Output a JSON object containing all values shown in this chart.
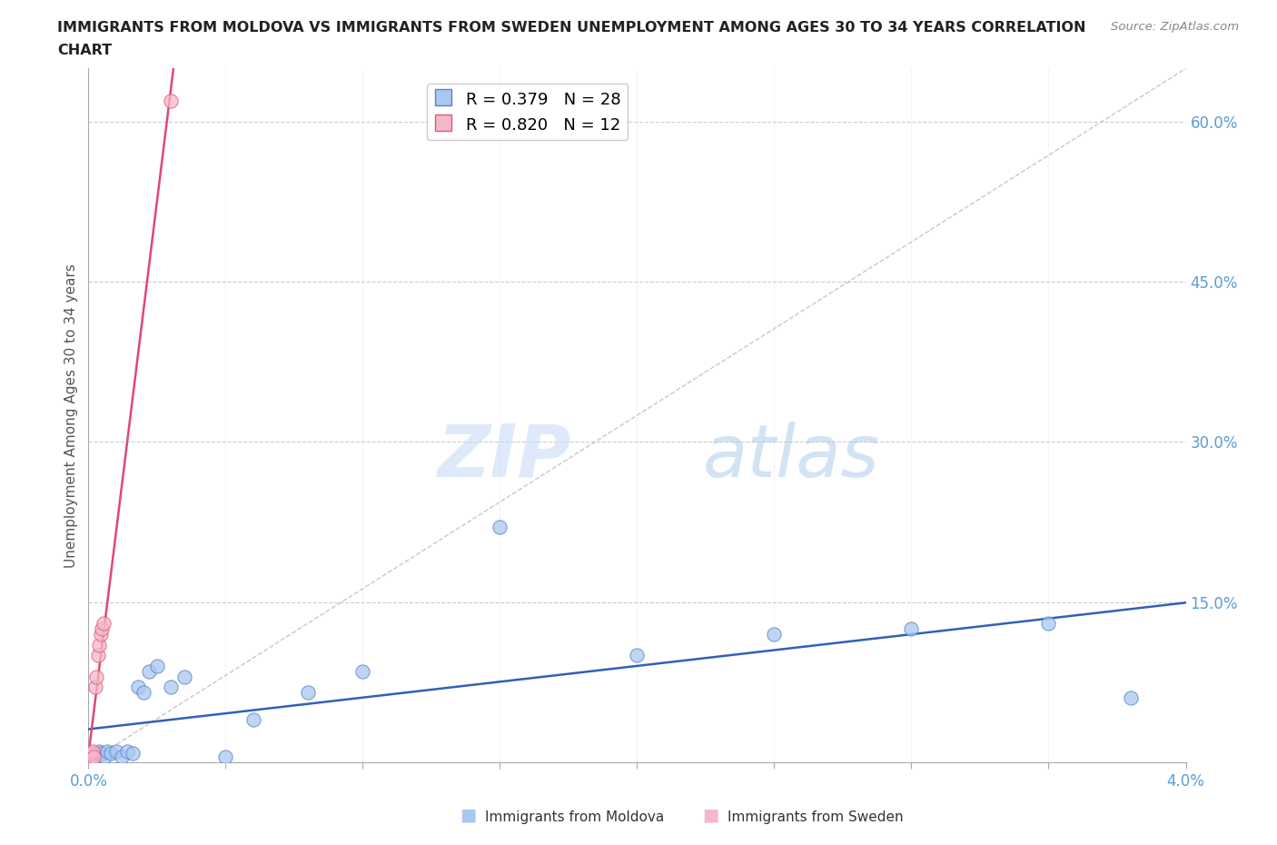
{
  "title_line1": "IMMIGRANTS FROM MOLDOVA VS IMMIGRANTS FROM SWEDEN UNEMPLOYMENT AMONG AGES 30 TO 34 YEARS CORRELATION",
  "title_line2": "CHART",
  "source": "Source: ZipAtlas.com",
  "ylabel": "Unemployment Among Ages 30 to 34 years",
  "xlim": [
    0.0,
    0.04
  ],
  "ylim": [
    0.0,
    0.65
  ],
  "x_ticks": [
    0.0,
    0.005,
    0.01,
    0.015,
    0.02,
    0.025,
    0.03,
    0.035,
    0.04
  ],
  "y_ticks_right": [
    0.0,
    0.15,
    0.3,
    0.45,
    0.6
  ],
  "x_tick_labels": [
    "0.0%",
    "",
    "",
    "",
    "",
    "",
    "",
    "",
    "4.0%"
  ],
  "y_tick_labels_right": [
    "",
    "15.0%",
    "30.0%",
    "45.0%",
    "60.0%"
  ],
  "moldova_R": 0.379,
  "moldova_N": 28,
  "sweden_R": 0.82,
  "sweden_N": 12,
  "moldova_color": "#a8c8f0",
  "sweden_color": "#f5b8c8",
  "moldova_edge_color": "#5585c8",
  "sweden_edge_color": "#e05878",
  "moldova_trend_color": "#3060b8",
  "sweden_trend_color": "#e04870",
  "legend_label_moldova": "Immigrants from Moldova",
  "legend_label_sweden": "Immigrants from Sweden",
  "watermark_zip": "ZIP",
  "watermark_atlas": "atlas",
  "background_color": "#ffffff",
  "grid_color": "#cccccc",
  "moldova_x": [
    0.0001,
    0.0002,
    0.0003,
    0.0004,
    0.0005,
    0.0006,
    0.0007,
    0.0008,
    0.001,
    0.0012,
    0.0014,
    0.0016,
    0.0018,
    0.002,
    0.0022,
    0.0025,
    0.003,
    0.0035,
    0.005,
    0.006,
    0.008,
    0.01,
    0.015,
    0.02,
    0.025,
    0.03,
    0.035,
    0.038
  ],
  "moldova_y": [
    0.005,
    0.008,
    0.005,
    0.01,
    0.008,
    0.005,
    0.01,
    0.008,
    0.01,
    0.005,
    0.01,
    0.008,
    0.07,
    0.065,
    0.085,
    0.09,
    0.07,
    0.08,
    0.005,
    0.04,
    0.065,
    0.085,
    0.22,
    0.1,
    0.12,
    0.125,
    0.13,
    0.06
  ],
  "sweden_x": [
    5e-05,
    0.0001,
    0.00015,
    0.0002,
    0.00025,
    0.0003,
    0.00035,
    0.0004,
    0.00045,
    0.0005,
    0.00055,
    0.003
  ],
  "sweden_y": [
    0.005,
    0.008,
    0.01,
    0.005,
    0.07,
    0.08,
    0.1,
    0.11,
    0.12,
    0.125,
    0.13,
    0.62
  ]
}
